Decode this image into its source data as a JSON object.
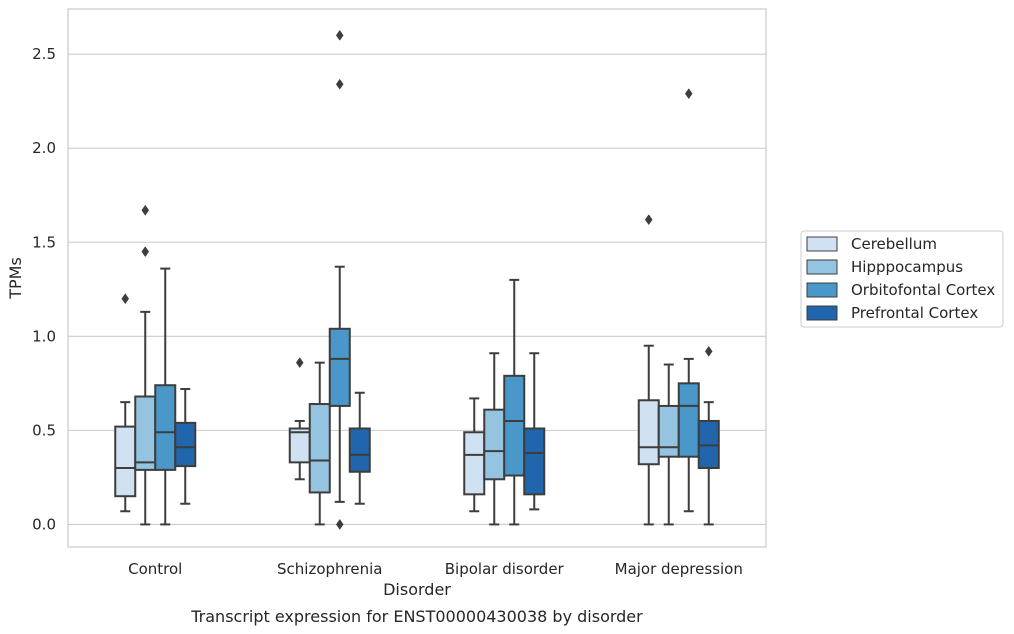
{
  "chart_data": {
    "type": "box",
    "title": "",
    "caption": "Transcript expression for ENST00000430038 by disorder",
    "xlabel": "Disorder",
    "ylabel": "TPMs",
    "ylim": [
      -0.12,
      2.74
    ],
    "yticks": [
      0.0,
      0.5,
      1.0,
      1.5,
      2.0,
      2.5
    ],
    "ytick_labels": [
      "0.0",
      "0.5",
      "1.0",
      "1.5",
      "2.0",
      "2.5"
    ],
    "grid": "horizontal",
    "legend_position": "right",
    "categories": [
      "Control",
      "Schizophrenia",
      "Bipolar disorder",
      "Major depression"
    ],
    "series": [
      {
        "name": "Cerebellum",
        "color": "#d0e1f2",
        "boxes": [
          {
            "whislo": 0.07,
            "q1": 0.15,
            "med": 0.3,
            "q3": 0.52,
            "whishi": 0.65,
            "fliers": [
              1.2
            ]
          },
          {
            "whislo": 0.24,
            "q1": 0.33,
            "med": 0.49,
            "q3": 0.51,
            "whishi": 0.55,
            "fliers": [
              0.86
            ]
          },
          {
            "whislo": 0.07,
            "q1": 0.16,
            "med": 0.37,
            "q3": 0.49,
            "whishi": 0.67,
            "fliers": []
          },
          {
            "whislo": 0.0,
            "q1": 0.32,
            "med": 0.41,
            "q3": 0.66,
            "whishi": 0.95,
            "fliers": [
              1.62
            ]
          }
        ]
      },
      {
        "name": "Hipppocampus",
        "color": "#94c4df",
        "boxes": [
          {
            "whislo": 0.0,
            "q1": 0.29,
            "med": 0.33,
            "q3": 0.68,
            "whishi": 1.13,
            "fliers": [
              1.45,
              1.67
            ]
          },
          {
            "whislo": 0.0,
            "q1": 0.17,
            "med": 0.34,
            "q3": 0.64,
            "whishi": 0.86,
            "fliers": []
          },
          {
            "whislo": 0.0,
            "q1": 0.24,
            "med": 0.39,
            "q3": 0.61,
            "whishi": 0.91,
            "fliers": []
          },
          {
            "whislo": 0.0,
            "q1": 0.36,
            "med": 0.41,
            "q3": 0.63,
            "whishi": 0.85,
            "fliers": []
          }
        ]
      },
      {
        "name": "Orbitofontal Cortex",
        "color": "#4a98c9",
        "boxes": [
          {
            "whislo": 0.0,
            "q1": 0.29,
            "med": 0.49,
            "q3": 0.74,
            "whishi": 1.36,
            "fliers": []
          },
          {
            "whislo": 0.12,
            "q1": 0.63,
            "med": 0.88,
            "q3": 1.04,
            "whishi": 1.37,
            "fliers": [
              0.0,
              2.34,
              2.6
            ]
          },
          {
            "whislo": 0.0,
            "q1": 0.26,
            "med": 0.55,
            "q3": 0.79,
            "whishi": 1.3,
            "fliers": []
          },
          {
            "whislo": 0.07,
            "q1": 0.36,
            "med": 0.63,
            "q3": 0.75,
            "whishi": 0.88,
            "fliers": [
              2.29
            ]
          }
        ]
      },
      {
        "name": "Prefrontal Cortex",
        "color": "#2166ac",
        "boxes": [
          {
            "whislo": 0.11,
            "q1": 0.31,
            "med": 0.41,
            "q3": 0.54,
            "whishi": 0.72,
            "fliers": []
          },
          {
            "whislo": 0.11,
            "q1": 0.28,
            "med": 0.37,
            "q3": 0.51,
            "whishi": 0.7,
            "fliers": []
          },
          {
            "whislo": 0.08,
            "q1": 0.16,
            "med": 0.38,
            "q3": 0.51,
            "whishi": 0.91,
            "fliers": []
          },
          {
            "whislo": 0.0,
            "q1": 0.3,
            "med": 0.42,
            "q3": 0.55,
            "whishi": 0.65,
            "fliers": [
              0.92
            ]
          }
        ]
      }
    ]
  }
}
